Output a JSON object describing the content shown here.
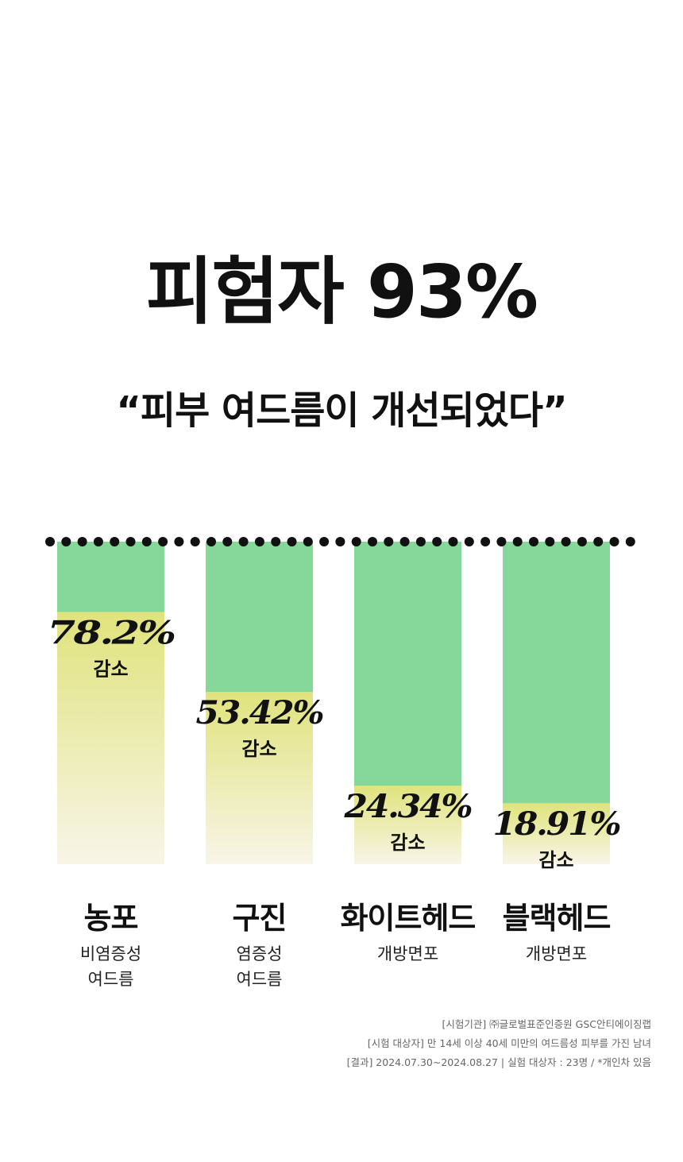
{
  "headline": "피험자 93%",
  "subheadline": "“피부 여드름이 개선되었다”",
  "chart_data": {
    "type": "bar",
    "categories": [
      "농포",
      "구진",
      "화이트헤드",
      "블랙헤드"
    ],
    "category_subtitles": [
      "비염증성\n여드름",
      "염증성\n여드름",
      "개방면포",
      "개방면포"
    ],
    "series": [
      {
        "values": [
          78.2,
          53.42,
          24.34,
          18.91
        ]
      }
    ],
    "value_labels": [
      "78.2%",
      "53.42%",
      "24.34%",
      "18.91%"
    ],
    "value_caption": "감소",
    "ylim": [
      0,
      100
    ],
    "colors": {
      "baseline_fill": "#86d79a",
      "decrease_fill_top": "#e0e37c",
      "decrease_fill_bottom": "#f8f5e8",
      "dotted_line": "#111111"
    }
  },
  "footnotes": [
    "[시험기관] ㈜글로벌표준인증원 GSC안티에이징랩",
    "[시험 대상자] 만 14세 이상 40세 미만의 여드름성 피부를 가진 남녀",
    "[결과] 2024.07.30~2024.08.27 | 실험 대상자 : 23명 / *개인차 있음"
  ]
}
